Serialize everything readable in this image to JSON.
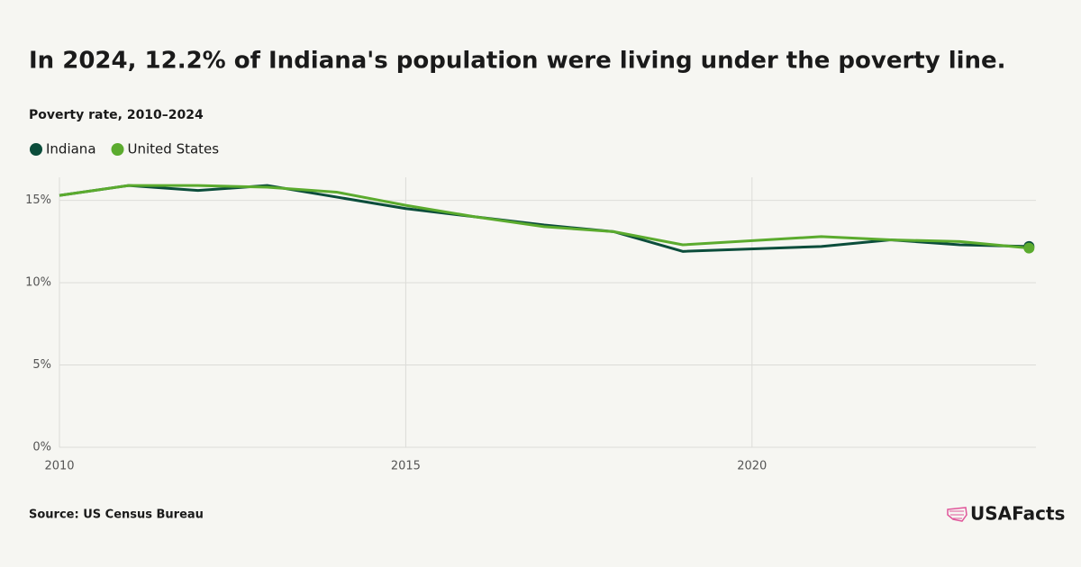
{
  "chart_data": {
    "type": "line",
    "title": "In 2024, 12.2% of Indiana's population were living under the poverty line.",
    "subtitle": "Poverty rate, 2010–2024",
    "source": "Source: US Census Bureau",
    "brand": "USAFacts",
    "x": [
      2010,
      2011,
      2012,
      2013,
      2014,
      2015,
      2016,
      2017,
      2018,
      2019,
      2021,
      2022,
      2023,
      2024
    ],
    "series": [
      {
        "name": "Indiana",
        "color": "#0b4d3b",
        "values": [
          15.3,
          15.9,
          15.6,
          15.9,
          15.2,
          14.5,
          14.0,
          13.5,
          13.1,
          11.9,
          12.2,
          12.6,
          12.3,
          12.2
        ]
      },
      {
        "name": "United States",
        "color": "#5bab2e",
        "values": [
          15.3,
          15.9,
          15.9,
          15.8,
          15.5,
          14.7,
          14.0,
          13.4,
          13.1,
          12.3,
          12.8,
          12.6,
          12.5,
          12.1
        ]
      }
    ],
    "xlim": [
      2010,
      2024.1
    ],
    "xticks": [
      2010,
      2015,
      2020
    ],
    "ylim": [
      0,
      16.4
    ],
    "yticks": [
      {
        "value": 0,
        "label": "0%"
      },
      {
        "value": 5,
        "label": "5%"
      },
      {
        "value": 10,
        "label": "10%"
      },
      {
        "value": 15,
        "label": "15%"
      }
    ],
    "grid": true
  }
}
